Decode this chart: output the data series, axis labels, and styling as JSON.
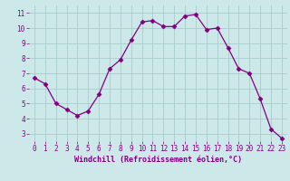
{
  "x": [
    0,
    1,
    2,
    3,
    4,
    5,
    6,
    7,
    8,
    9,
    10,
    11,
    12,
    13,
    14,
    15,
    16,
    17,
    18,
    19,
    20,
    21,
    22,
    23
  ],
  "y": [
    6.7,
    6.3,
    5.0,
    4.6,
    4.2,
    4.5,
    5.6,
    7.3,
    7.9,
    9.2,
    10.4,
    10.5,
    10.1,
    10.1,
    10.8,
    10.9,
    9.9,
    10.0,
    8.7,
    7.3,
    7.0,
    5.3,
    3.3,
    2.7
  ],
  "line_color": "#800080",
  "marker": "D",
  "marker_size": 2.5,
  "bg_color": "#cce8e8",
  "grid_color": "#aacccc",
  "xlabel": "Windchill (Refroidissement éolien,°C)",
  "xlabel_color": "#800080",
  "tick_color": "#800080",
  "ylim": [
    2.5,
    11.5
  ],
  "xlim": [
    -0.5,
    23.5
  ],
  "yticks": [
    3,
    4,
    5,
    6,
    7,
    8,
    9,
    10,
    11
  ],
  "xticks": [
    0,
    1,
    2,
    3,
    4,
    5,
    6,
    7,
    8,
    9,
    10,
    11,
    12,
    13,
    14,
    15,
    16,
    17,
    18,
    19,
    20,
    21,
    22,
    23
  ],
  "tick_fontsize": 5.5,
  "xlabel_fontsize": 6.0
}
